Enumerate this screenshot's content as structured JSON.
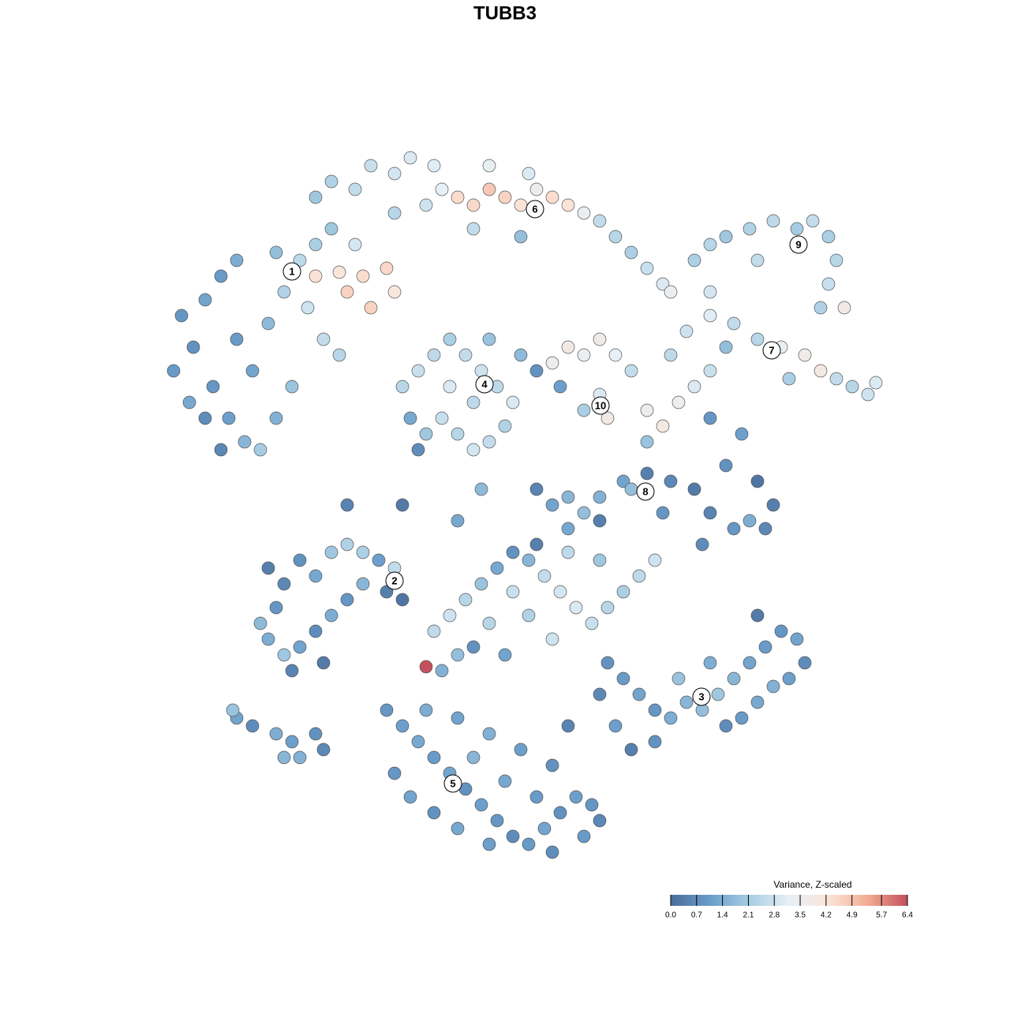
{
  "chart_data": {
    "type": "scatter",
    "title": "TUBB3",
    "xlim": [
      0,
      930
    ],
    "ylim": [
      0,
      910
    ],
    "x": [
      30,
      45,
      20,
      60,
      80,
      100,
      70,
      90,
      110,
      130,
      150,
      120,
      140,
      160,
      180,
      200,
      220,
      190,
      210,
      230,
      170,
      100,
      60,
      40,
      200,
      240,
      260,
      290,
      270,
      230,
      300,
      150,
      80,
      250,
      200,
      220,
      250,
      270,
      300,
      320,
      350,
      360,
      340,
      380,
      400,
      420,
      440,
      460,
      480,
      500,
      520,
      540,
      560,
      580,
      600,
      620,
      640,
      420,
      470,
      300,
      400,
      460,
      310,
      330,
      350,
      370,
      390,
      410,
      430,
      450,
      440,
      420,
      400,
      380,
      360,
      340,
      320,
      330,
      400,
      370,
      420,
      460,
      500,
      520,
      540,
      560,
      580,
      600,
      560,
      570,
      540,
      510,
      480,
      620,
      640,
      660,
      680,
      700,
      650,
      670,
      700,
      730,
      760,
      790,
      820,
      840,
      860,
      880,
      900,
      910,
      800,
      720,
      700,
      740,
      620,
      680,
      700,
      720,
      750,
      780,
      810,
      830,
      850,
      860,
      850,
      870,
      840,
      760,
      650,
      700,
      480,
      500,
      520,
      540,
      560,
      590,
      620,
      650,
      680,
      700,
      730,
      750,
      770,
      780,
      760,
      720,
      690,
      640,
      600,
      560,
      520,
      140,
      160,
      180,
      200,
      220,
      240,
      260,
      280,
      300,
      310,
      290,
      260,
      240,
      220,
      200,
      180,
      160,
      140,
      130,
      170,
      210,
      150,
      350,
      370,
      390,
      410,
      430,
      450,
      470,
      490,
      510,
      530,
      550,
      570,
      590,
      610,
      630,
      450,
      470,
      500,
      420,
      380,
      360,
      400,
      440,
      480,
      520,
      560,
      570,
      590,
      610,
      630,
      650,
      670,
      690,
      710,
      730,
      750,
      770,
      790,
      810,
      820,
      800,
      780,
      760,
      740,
      720,
      600,
      630,
      580,
      660,
      700,
      760,
      290,
      310,
      330,
      350,
      370,
      390,
      410,
      430,
      450,
      470,
      490,
      510,
      530,
      550,
      560,
      540,
      500,
      420,
      380,
      350,
      320,
      300,
      340,
      380,
      420,
      460,
      500,
      440,
      400,
      480,
      520,
      560,
      100,
      120,
      150,
      170,
      180,
      160,
      200,
      210,
      95,
      310,
      240,
      410,
      380,
      340
    ],
    "y": [
      690,
      650,
      620,
      710,
      740,
      760,
      600,
      560,
      530,
      520,
      560,
      620,
      680,
      720,
      760,
      780,
      800,
      700,
      660,
      640,
      600,
      660,
      560,
      580,
      740,
      720,
      740,
      750,
      700,
      745,
      720,
      770,
      520,
      780,
      840,
      860,
      850,
      880,
      870,
      890,
      880,
      850,
      830,
      840,
      830,
      850,
      840,
      830,
      850,
      840,
      830,
      820,
      810,
      790,
      770,
      750,
      730,
      880,
      870,
      820,
      800,
      790,
      600,
      620,
      640,
      660,
      640,
      620,
      600,
      580,
      550,
      530,
      520,
      540,
      560,
      540,
      560,
      520,
      580,
      600,
      660,
      640,
      630,
      650,
      640,
      660,
      640,
      620,
      590,
      560,
      570,
      600,
      620,
      570,
      550,
      580,
      600,
      620,
      640,
      670,
      690,
      680,
      660,
      650,
      640,
      620,
      610,
      600,
      590,
      605,
      610,
      650,
      560,
      540,
      530,
      760,
      780,
      790,
      800,
      810,
      800,
      810,
      790,
      760,
      730,
      700,
      700,
      760,
      720,
      720,
      470,
      450,
      460,
      440,
      460,
      480,
      490,
      480,
      470,
      440,
      420,
      430,
      420,
      450,
      480,
      500,
      400,
      440,
      470,
      430,
      420,
      370,
      350,
      380,
      360,
      390,
      400,
      390,
      380,
      370,
      330,
      340,
      350,
      330,
      310,
      290,
      270,
      260,
      280,
      300,
      240,
      250,
      320,
      290,
      310,
      330,
      350,
      370,
      390,
      380,
      360,
      340,
      320,
      300,
      320,
      340,
      360,
      380,
      340,
      310,
      280,
      300,
      260,
      240,
      270,
      260,
      400,
      390,
      380,
      250,
      230,
      210,
      190,
      180,
      200,
      190,
      210,
      230,
      250,
      270,
      290,
      280,
      250,
      230,
      220,
      200,
      180,
      170,
      140,
      150,
      170,
      230,
      250,
      310,
      190,
      170,
      150,
      130,
      110,
      90,
      70,
      50,
      30,
      20,
      40,
      60,
      80,
      70,
      50,
      30,
      10,
      20,
      40,
      60,
      80,
      110,
      190,
      180,
      160,
      140,
      120,
      100,
      130,
      80,
      170,
      210,
      180,
      170,
      160,
      150,
      130,
      130,
      160,
      140,
      190,
      450,
      450,
      470,
      430,
      245
    ],
    "values": [
      0.9,
      0.8,
      1.0,
      1.2,
      1.0,
      1.4,
      0.9,
      1.1,
      1.6,
      2.1,
      1.5,
      1.2,
      1.7,
      2.3,
      2.5,
      2.2,
      2.0,
      2.8,
      2.6,
      2.4,
      1.9,
      1.0,
      0.7,
      1.3,
      4.3,
      4.6,
      4.4,
      4.5,
      4.6,
      4.2,
      4.1,
      1.8,
      0.6,
      2.9,
      2.0,
      2.3,
      2.6,
      2.7,
      2.9,
      3.0,
      3.1,
      3.2,
      2.8,
      4.4,
      4.5,
      4.8,
      4.6,
      4.3,
      3.6,
      4.4,
      4.3,
      3.4,
      2.6,
      2.4,
      2.2,
      2.7,
      3.0,
      3.3,
      3.0,
      2.4,
      2.6,
      1.8,
      2.4,
      2.7,
      2.5,
      2.2,
      2.6,
      2.8,
      2.5,
      3.0,
      2.3,
      2.6,
      2.9,
      2.4,
      2.7,
      2.0,
      1.3,
      0.7,
      2.5,
      3.0,
      1.9,
      1.7,
      3.6,
      3.8,
      3.4,
      3.7,
      3.2,
      2.6,
      3.0,
      3.9,
      2.2,
      1.1,
      0.8,
      3.6,
      3.9,
      3.5,
      3.0,
      2.7,
      2.5,
      2.8,
      3.1,
      2.6,
      2.4,
      3.3,
      3.7,
      3.9,
      2.6,
      2.4,
      2.8,
      3.0,
      2.2,
      1.8,
      0.9,
      1.1,
      1.9,
      2.2,
      2.4,
      2.0,
      2.3,
      2.5,
      2.1,
      2.6,
      2.2,
      2.4,
      2.7,
      3.8,
      2.3,
      2.6,
      3.4,
      2.9,
      0.5,
      1.2,
      1.6,
      1.8,
      1.5,
      1.2,
      0.4,
      0.6,
      0.3,
      0.5,
      0.9,
      1.4,
      0.6,
      0.4,
      0.2,
      0.8,
      0.7,
      0.9,
      1.8,
      0.4,
      1.3,
      0.4,
      0.6,
      0.8,
      1.3,
      2.0,
      2.3,
      2.2,
      1.1,
      2.6,
      0.2,
      0.4,
      1.6,
      0.9,
      1.4,
      0.7,
      1.2,
      2.0,
      1.4,
      1.7,
      0.5,
      0.3,
      0.9,
      2.5,
      2.8,
      2.4,
      1.9,
      1.3,
      0.8,
      1.6,
      2.6,
      2.9,
      3.0,
      2.7,
      2.4,
      2.2,
      2.5,
      2.8,
      2.7,
      2.3,
      2.8,
      2.4,
      1.8,
      1.5,
      0.8,
      1.2,
      0.4,
      2.5,
      2.0,
      0.8,
      1.0,
      1.2,
      0.9,
      1.4,
      1.6,
      1.8,
      2.0,
      1.6,
      1.2,
      1.0,
      0.9,
      1.2,
      0.7,
      1.1,
      1.5,
      1.3,
      1.0,
      0.7,
      0.4,
      0.8,
      1.1,
      1.9,
      1.4,
      0.3,
      0.9,
      1.1,
      1.3,
      1.0,
      1.2,
      0.8,
      1.1,
      0.9,
      0.7,
      1.0,
      1.2,
      0.8,
      1.1,
      0.9,
      0.6,
      1.0,
      0.7,
      1.1,
      1.3,
      0.8,
      1.2,
      0.9,
      1.4,
      1.2,
      1.5,
      1.1,
      0.8,
      1.3,
      1.6,
      1.0,
      0.5,
      0.6,
      1.2,
      0.7,
      1.4,
      1.1,
      1.5,
      1.6,
      0.8,
      0.6,
      1.9,
      0.3,
      0.5,
      1.7,
      1.3,
      6.4
    ],
    "annotations": [
      {
        "text": "1",
        "x": 170,
        "y": 746
      },
      {
        "text": "2",
        "x": 300,
        "y": 354
      },
      {
        "text": "3",
        "x": 689,
        "y": 207
      },
      {
        "text": "4",
        "x": 414,
        "y": 603
      },
      {
        "text": "5",
        "x": 374,
        "y": 97
      },
      {
        "text": "6",
        "x": 478,
        "y": 825
      },
      {
        "text": "7",
        "x": 778,
        "y": 646
      },
      {
        "text": "8",
        "x": 618,
        "y": 467
      },
      {
        "text": "9",
        "x": 812,
        "y": 780
      },
      {
        "text": "10",
        "x": 561,
        "y": 576
      }
    ],
    "colorbar": {
      "title": "Variance, Z-scaled",
      "lim": [
        0,
        6.4
      ],
      "ticks": [
        {
          "value": 0,
          "label": "0.0"
        },
        0.7,
        1.4,
        2.1,
        2.8,
        3.5,
        4.2,
        4.9,
        5.7,
        6.4
      ],
      "colors": [
        "#4a6c9b",
        "#6a9ecb",
        "#a7cde3",
        "#e6f0f6",
        "#fbe4d8",
        "#f2ac92",
        "#c4505d"
      ],
      "corner": "bottom-right"
    }
  }
}
